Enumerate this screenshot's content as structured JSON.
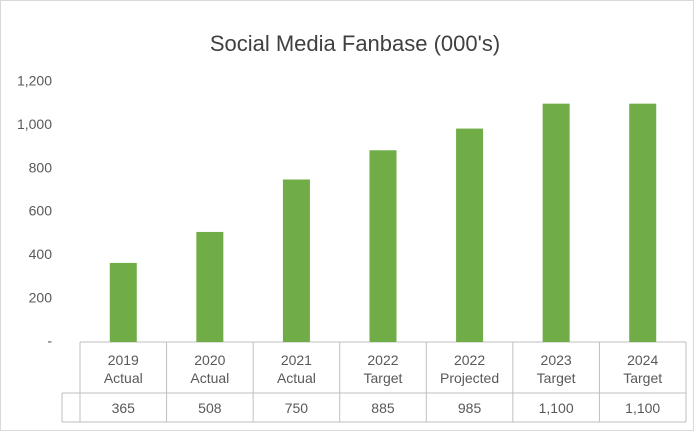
{
  "chart_data": {
    "type": "bar",
    "title": "Social Media Fanbase (000's)",
    "categories": [
      "2019\nActual",
      "2020\nActual",
      "2021\nActual",
      "2022\nTarget",
      "2022\nProjected",
      "2023\nTarget",
      "2024\nTarget"
    ],
    "values": [
      365,
      508,
      750,
      885,
      985,
      1100,
      1100
    ],
    "value_labels": [
      "365",
      "508",
      "750",
      "885",
      "985",
      "1,100",
      "1,100"
    ],
    "color": "#70ad47",
    "ylim": [
      0,
      1200
    ],
    "yticks": [
      {
        "value": 0,
        "label": "-"
      },
      200,
      400,
      600,
      800,
      {
        "value": 1000,
        "label": "1,000"
      },
      {
        "value": 1200,
        "label": "1,200"
      }
    ],
    "grid": false
  }
}
